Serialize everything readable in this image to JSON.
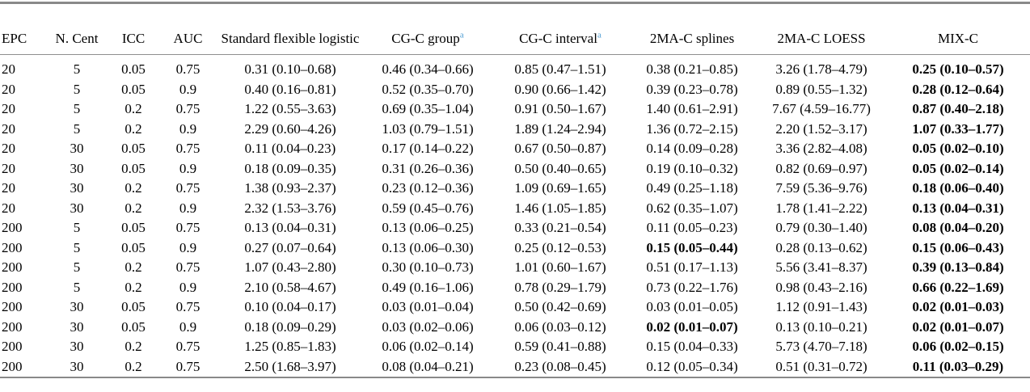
{
  "colors": {
    "footnote_marker": "#4e9dd3",
    "rule": "#898989",
    "text": "#000000",
    "background": "#ffffff"
  },
  "table": {
    "columns": [
      {
        "label": "EPC",
        "align": "left"
      },
      {
        "label": "N. Cent",
        "align": "center"
      },
      {
        "label": "ICC",
        "align": "center"
      },
      {
        "label": "AUC",
        "align": "center"
      },
      {
        "label": "Standard flexible logistic",
        "align": "center"
      },
      {
        "label": "CG-C group",
        "superscript": "a",
        "align": "center"
      },
      {
        "label": "CG-C interval",
        "superscript": "a",
        "align": "center"
      },
      {
        "label": "2MA-C splines",
        "align": "center"
      },
      {
        "label": "2MA-C LOESS",
        "align": "center"
      },
      {
        "label": "MIX-C",
        "align": "center",
        "bold": true
      }
    ],
    "rows": [
      [
        "20",
        "5",
        "0.05",
        "0.75",
        "0.31 (0.10–0.68)",
        "0.46 (0.34–0.66)",
        "0.85 (0.47–1.51)",
        "0.38 (0.21–0.85)",
        "3.26 (1.78–4.79)",
        "0.25 (0.10–0.57)"
      ],
      [
        "20",
        "5",
        "0.05",
        "0.9",
        "0.40 (0.16–0.81)",
        "0.52 (0.35–0.70)",
        "0.90 (0.66–1.42)",
        "0.39 (0.23–0.78)",
        "0.89 (0.55–1.32)",
        "0.28 (0.12–0.64)"
      ],
      [
        "20",
        "5",
        "0.2",
        "0.75",
        "1.22 (0.55–3.63)",
        "0.69 (0.35–1.04)",
        "0.91 (0.50–1.67)",
        "1.40 (0.61–2.91)",
        "7.67 (4.59–16.77)",
        "0.87 (0.40–2.18)"
      ],
      [
        "20",
        "5",
        "0.2",
        "0.9",
        "2.29 (0.60–4.26)",
        "1.03 (0.79–1.51)",
        "1.89 (1.24–2.94)",
        "1.36 (0.72–2.15)",
        "2.20 (1.52–3.17)",
        "1.07 (0.33–1.77)"
      ],
      [
        "20",
        "30",
        "0.05",
        "0.75",
        "0.11 (0.04–0.23)",
        "0.17 (0.14–0.22)",
        "0.67 (0.50–0.87)",
        "0.14 (0.09–0.28)",
        "3.36 (2.82–4.08)",
        "0.05 (0.02–0.10)"
      ],
      [
        "20",
        "30",
        "0.05",
        "0.9",
        "0.18 (0.09–0.35)",
        "0.31 (0.26–0.36)",
        "0.50 (0.40–0.65)",
        "0.19 (0.10–0.32)",
        "0.82 (0.69–0.97)",
        "0.05 (0.02–0.14)"
      ],
      [
        "20",
        "30",
        "0.2",
        "0.75",
        "1.38 (0.93–2.37)",
        "0.23 (0.12–0.36)",
        "1.09 (0.69–1.65)",
        "0.49 (0.25–1.18)",
        "7.59 (5.36–9.76)",
        "0.18 (0.06–0.40)"
      ],
      [
        "20",
        "30",
        "0.2",
        "0.9",
        "2.32 (1.53–3.76)",
        "0.59 (0.45–0.76)",
        "1.46 (1.05–1.85)",
        "0.62 (0.35–1.07)",
        "1.78 (1.41–2.22)",
        "0.13 (0.04–0.31)"
      ],
      [
        "200",
        "5",
        "0.05",
        "0.75",
        "0.13 (0.04–0.31)",
        "0.13 (0.06–0.25)",
        "0.33 (0.21–0.54)",
        "0.11 (0.05–0.23)",
        "0.79 (0.30–1.40)",
        "0.08 (0.04–0.20)"
      ],
      [
        "200",
        "5",
        "0.05",
        "0.9",
        "0.27 (0.07–0.64)",
        "0.13 (0.06–0.30)",
        "0.25 (0.12–0.53)",
        "0.15 (0.05–0.44)",
        "0.28 (0.13–0.62)",
        "0.15 (0.06–0.43)"
      ],
      [
        "200",
        "5",
        "0.2",
        "0.75",
        "1.07 (0.43–2.80)",
        "0.30 (0.10–0.73)",
        "1.01 (0.60–1.67)",
        "0.51 (0.17–1.13)",
        "5.56 (3.41–8.37)",
        "0.39 (0.13–0.84)"
      ],
      [
        "200",
        "5",
        "0.2",
        "0.9",
        "2.10 (0.58–4.67)",
        "0.49 (0.16–1.06)",
        "0.78 (0.29–1.79)",
        "0.73 (0.22–1.76)",
        "0.98 (0.43–2.16)",
        "0.66 (0.22–1.69)"
      ],
      [
        "200",
        "30",
        "0.05",
        "0.75",
        "0.10 (0.04–0.17)",
        "0.03 (0.01–0.04)",
        "0.50 (0.42–0.69)",
        "0.03 (0.01–0.05)",
        "1.12 (0.91–1.43)",
        "0.02 (0.01–0.03)"
      ],
      [
        "200",
        "30",
        "0.05",
        "0.9",
        "0.18 (0.09–0.29)",
        "0.03 (0.02–0.06)",
        "0.06 (0.03–0.12)",
        "0.02 (0.01–0.07)",
        "0.13 (0.10–0.21)",
        "0.02 (0.01–0.07)"
      ],
      [
        "200",
        "30",
        "0.2",
        "0.75",
        "1.25 (0.85–1.83)",
        "0.06 (0.02–0.14)",
        "0.59 (0.41–0.88)",
        "0.15 (0.04–0.33)",
        "5.73 (4.70–7.18)",
        "0.06 (0.02–0.15)"
      ],
      [
        "200",
        "30",
        "0.2",
        "0.75",
        "2.50 (1.68–3.97)",
        "0.08 (0.04–0.21)",
        "0.23 (0.08–0.45)",
        "0.12 (0.05–0.34)",
        "0.51 (0.31–0.72)",
        "0.11 (0.03–0.29)"
      ]
    ],
    "bold_cells": [
      [
        9,
        7
      ],
      [
        13,
        7
      ]
    ]
  }
}
